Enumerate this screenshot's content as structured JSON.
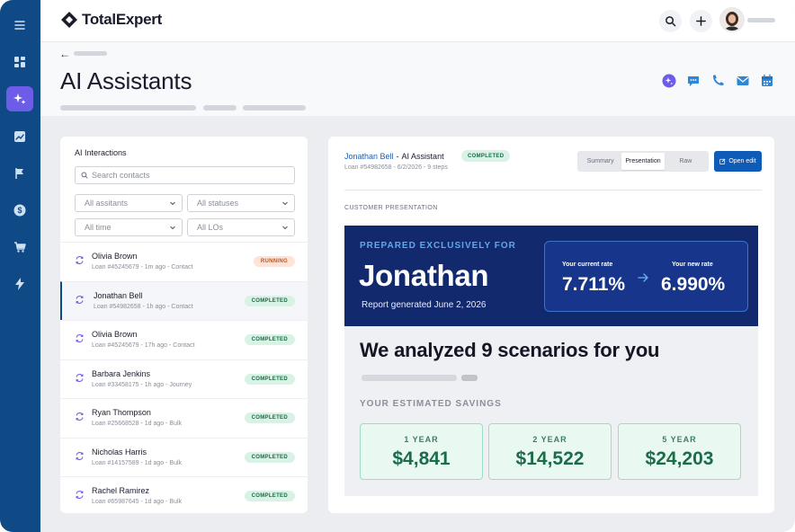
{
  "app": {
    "logo_text": "TotalExpert"
  },
  "page": {
    "title": "AI Assistants"
  },
  "left_panel": {
    "title": "AI Interactions",
    "search_placeholder": "Search contacts",
    "filters": [
      "All assitants",
      "All statuses",
      "All time",
      "All LOs"
    ],
    "items": [
      {
        "name": "Olivia Brown",
        "sub": "Loan  #45245679 - 1m ago - Contact",
        "status": "RUNNING",
        "status_kind": "running"
      },
      {
        "name": "Jonathan Bell",
        "sub": "Loan  #54982658 - 1h ago - Contact",
        "status": "COMPLETED",
        "status_kind": "completed",
        "selected": true
      },
      {
        "name": "Olivia Brown",
        "sub": "Loan  #45245679 - 17h ago - Contact",
        "status": "COMPLETED",
        "status_kind": "completed"
      },
      {
        "name": "Barbara Jenkins",
        "sub": "Loan  #33458175 - 1h ago - Journey",
        "status": "COMPLETED",
        "status_kind": "completed"
      },
      {
        "name": "Ryan Thompson",
        "sub": "Loan  #25668528 - 1d ago - Bulk",
        "status": "COMPLETED",
        "status_kind": "completed"
      },
      {
        "name": "Nicholas Harris",
        "sub": "Loan  #14157589 - 1d ago - Bulk",
        "status": "COMPLETED",
        "status_kind": "completed"
      },
      {
        "name": "Rachel Ramirez",
        "sub": "Loan  #65987645 - 1d ago - Bulk",
        "status": "COMPLETED",
        "status_kind": "completed"
      }
    ]
  },
  "detail": {
    "name": "Jonathan Bell",
    "separator": "-",
    "assistant": "AI  Assistant",
    "status": "COMPLETED",
    "subtitle": "Loan  #54982658 - 6/2/2026 - 9 steps",
    "tabs": [
      "Summary",
      "Presentation",
      "Raw"
    ],
    "active_tab": "Presentation",
    "open_edit_label": "Open edit",
    "section_label": "CUSTOMER PRESENTATION",
    "presentation": {
      "kicker": "PREPARED EXCLUSIVELY FOR",
      "client_name": "Jonathan",
      "report_date": "Report generated June 2, 2026",
      "current_rate_label": "Your current rate",
      "current_rate": "7.711%",
      "new_rate_label": "Your new rate",
      "new_rate": "6.990%",
      "scenarios_title": "We analyzed 9 scenarios for you",
      "savings_label": "YOUR ESTIMATED SAVINGS",
      "savings": [
        {
          "period": "1 YEAR",
          "amount": "$4,841"
        },
        {
          "period": "2 YEAR",
          "amount": "$14,522"
        },
        {
          "period": "5 YEAR",
          "amount": "$24,203"
        }
      ]
    }
  },
  "colors": {
    "sidebar": "#0f4a86",
    "accent_purple": "#6c5ce7",
    "primary_blue": "#0f5cb8",
    "hero_navy": "#13296d",
    "savings_green": "#1b6d4a"
  }
}
